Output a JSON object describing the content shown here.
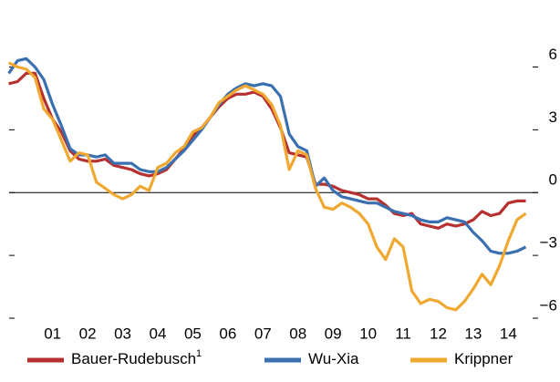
{
  "chart_data": {
    "type": "line",
    "x": [
      2000.25,
      2000.5,
      2000.75,
      2001,
      2001.25,
      2001.5,
      2001.75,
      2002,
      2002.25,
      2002.5,
      2002.75,
      2003,
      2003.25,
      2003.5,
      2003.75,
      2004,
      2004.25,
      2004.5,
      2004.75,
      2005,
      2005.25,
      2005.5,
      2005.75,
      2006,
      2006.25,
      2006.5,
      2006.75,
      2007,
      2007.25,
      2007.5,
      2007.75,
      2008,
      2008.25,
      2008.5,
      2008.75,
      2009,
      2009.25,
      2009.5,
      2009.75,
      2010,
      2010.25,
      2010.5,
      2010.75,
      2011,
      2011.25,
      2011.5,
      2011.75,
      2012,
      2012.25,
      2012.5,
      2012.75,
      2013,
      2013.25,
      2013.5,
      2013.75,
      2014,
      2014.25,
      2014.5,
      2014.75,
      2015
    ],
    "series": [
      {
        "name": "Bauer-Rudebusch",
        "footnote_marker": "1",
        "color": "#b5302e",
        "values": [
          5.2,
          5.3,
          5.7,
          5.7,
          4.5,
          3.5,
          2.9,
          2.0,
          1.6,
          1.5,
          1.5,
          1.6,
          1.3,
          1.2,
          1.1,
          0.9,
          0.8,
          0.9,
          1.1,
          1.6,
          2.1,
          2.7,
          3.1,
          3.6,
          4.1,
          4.5,
          4.7,
          4.7,
          4.8,
          4.6,
          4.0,
          3.1,
          1.9,
          1.8,
          1.7,
          0.4,
          0.4,
          0.3,
          0.1,
          0.0,
          -0.1,
          -0.3,
          -0.3,
          -0.6,
          -1.0,
          -1.1,
          -1.0,
          -1.5,
          -1.6,
          -1.7,
          -1.5,
          -1.6,
          -1.5,
          -1.3,
          -0.9,
          -1.1,
          -1.0,
          -0.5,
          -0.4,
          -0.4
        ]
      },
      {
        "name": "Wu-Xia",
        "color": "#3a6fb0",
        "values": [
          5.7,
          6.3,
          6.4,
          6.0,
          5.4,
          4.2,
          3.2,
          2.1,
          1.8,
          1.8,
          1.7,
          1.8,
          1.4,
          1.4,
          1.4,
          1.1,
          1.0,
          1.0,
          1.2,
          1.6,
          2.0,
          2.5,
          3.0,
          3.6,
          4.2,
          4.7,
          5.0,
          5.2,
          5.1,
          5.2,
          5.1,
          4.6,
          2.8,
          2.2,
          2.0,
          0.3,
          0.7,
          0.1,
          -0.2,
          -0.3,
          -0.4,
          -0.5,
          -0.5,
          -0.7,
          -0.9,
          -1.0,
          -1.1,
          -1.3,
          -1.4,
          -1.4,
          -1.2,
          -1.3,
          -1.4,
          -1.9,
          -2.3,
          -2.8,
          -2.9,
          -2.9,
          -2.8,
          -2.6
        ]
      },
      {
        "name": "Krippner",
        "color": "#f0a830",
        "values": [
          6.2,
          6.0,
          5.9,
          5.5,
          4.0,
          3.5,
          2.5,
          1.5,
          1.9,
          1.8,
          0.5,
          0.2,
          -0.1,
          -0.3,
          -0.1,
          0.3,
          0.1,
          1.2,
          1.4,
          1.9,
          2.2,
          2.9,
          3.1,
          3.6,
          4.3,
          4.6,
          4.9,
          5.1,
          4.9,
          4.7,
          4.2,
          3.2,
          1.1,
          2.0,
          1.8,
          0.2,
          -0.7,
          -0.8,
          -0.5,
          -0.7,
          -1.0,
          -1.5,
          -2.6,
          -3.2,
          -2.2,
          -2.6,
          -4.7,
          -5.3,
          -5.1,
          -5.2,
          -5.5,
          -5.6,
          -5.2,
          -4.6,
          -3.9,
          -4.4,
          -3.5,
          -2.3,
          -1.3,
          -1.0
        ]
      }
    ],
    "xlim": [
      2000,
      2015.35
    ],
    "xticks": [
      {
        "value": 2001.5,
        "label": "01"
      },
      {
        "value": 2002.5,
        "label": "02"
      },
      {
        "value": 2003.5,
        "label": "03"
      },
      {
        "value": 2004.5,
        "label": "04"
      },
      {
        "value": 2005.5,
        "label": "05"
      },
      {
        "value": 2006.5,
        "label": "06"
      },
      {
        "value": 2007.5,
        "label": "07"
      },
      {
        "value": 2008.5,
        "label": "08"
      },
      {
        "value": 2009.5,
        "label": "09"
      },
      {
        "value": 2010.5,
        "label": "10"
      },
      {
        "value": 2011.5,
        "label": "11"
      },
      {
        "value": 2012.5,
        "label": "12"
      },
      {
        "value": 2013.5,
        "label": "13"
      },
      {
        "value": 2014.5,
        "label": "14"
      }
    ],
    "ylim": [
      -6,
      9.2
    ],
    "yticks": [
      6,
      3,
      0,
      {
        "value": -3,
        "label": "−3"
      },
      {
        "value": -6,
        "label": "−6"
      }
    ],
    "zero_line": true
  }
}
